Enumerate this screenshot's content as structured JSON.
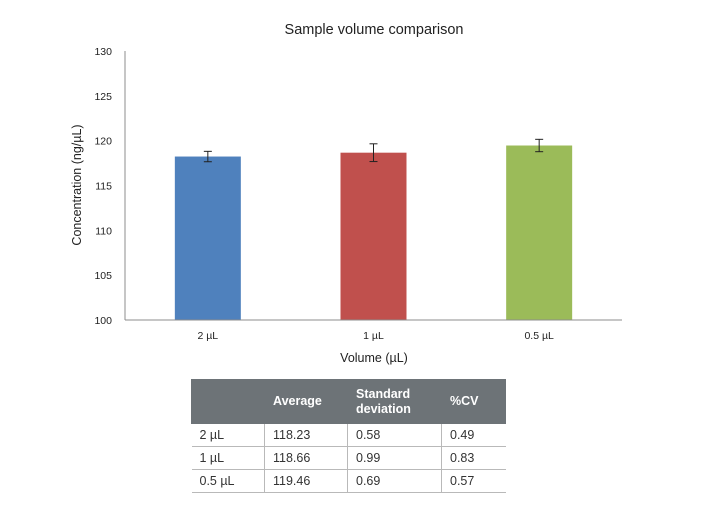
{
  "chart_data": {
    "type": "bar",
    "title": "Sample volume comparison",
    "xlabel": "Volume (µL)",
    "ylabel": "Concentration (ng/µL)",
    "categories": [
      "2 µL",
      "1 µL",
      "0.5 µL"
    ],
    "values": [
      118.23,
      118.66,
      119.46
    ],
    "error": [
      0.58,
      0.99,
      0.69
    ],
    "colors": [
      "#4f81bd",
      "#c0504d",
      "#9bbb59"
    ],
    "ylim": [
      100,
      130
    ],
    "yticks": [
      "100",
      "105",
      "110",
      "115",
      "120",
      "125",
      "130"
    ],
    "grid": false,
    "legend": "none"
  },
  "table": {
    "headers": [
      "",
      "Average",
      "Standard deviation",
      "%CV"
    ],
    "rows": [
      [
        "2 µL",
        "118.23",
        "0.58",
        "0.49"
      ],
      [
        "1 µL",
        "118.66",
        "0.99",
        "0.83"
      ],
      [
        "0.5 µL",
        "119.46",
        "0.69",
        "0.57"
      ]
    ]
  }
}
